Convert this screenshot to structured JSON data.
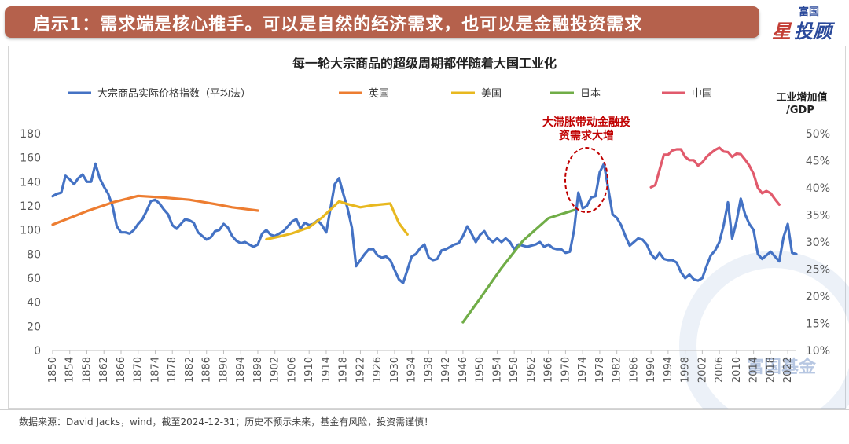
{
  "header": {
    "title": "启示1：需求端是核心推手。可以是自然的经济需求，也可以是金融投资需求",
    "logo_top": "富国",
    "logo_mark": "星",
    "logo_text": "投顾"
  },
  "footer": {
    "source": "数据来源：David Jacks，wind，截至2024-12-31；历史不预示未来，基金有风险，投资需谨慎！"
  },
  "watermark": "富国基金",
  "chart_data": {
    "type": "line",
    "title": "每一轮大宗商品的超级周期都伴随着大国工业化",
    "y2label": "工业增加值\n/GDP",
    "annotation": "大滞胀带动金融投\n资需求大增",
    "legend_position": "top",
    "ylim": [
      0,
      180
    ],
    "y2lim": [
      0.1,
      0.5
    ],
    "xlim": [
      1850,
      2024
    ],
    "y_ticks": [
      0,
      20,
      40,
      60,
      80,
      100,
      120,
      140,
      160,
      180
    ],
    "y2_ticks": [
      "10%",
      "15%",
      "20%",
      "25%",
      "30%",
      "35%",
      "40%",
      "45%",
      "50%"
    ],
    "x_ticks": [
      1850,
      1854,
      1858,
      1862,
      1866,
      1870,
      1874,
      1878,
      1882,
      1886,
      1890,
      1894,
      1898,
      1902,
      1906,
      1910,
      1914,
      1918,
      1922,
      1926,
      1930,
      1934,
      1938,
      1942,
      1946,
      1950,
      1954,
      1958,
      1962,
      1966,
      1970,
      1974,
      1978,
      1982,
      1986,
      1990,
      1994,
      1998,
      2002,
      2006,
      2010,
      2014,
      2018,
      2022
    ],
    "grid": false,
    "series": [
      {
        "name": "大宗商品实际价格指数（平均法）",
        "axis": "left",
        "color": "#4472c4",
        "points": [
          [
            1850,
            128
          ],
          [
            1851,
            130
          ],
          [
            1852,
            131
          ],
          [
            1853,
            145
          ],
          [
            1854,
            142
          ],
          [
            1855,
            138
          ],
          [
            1856,
            143
          ],
          [
            1857,
            146
          ],
          [
            1858,
            140
          ],
          [
            1859,
            140
          ],
          [
            1860,
            155
          ],
          [
            1861,
            143
          ],
          [
            1862,
            136
          ],
          [
            1863,
            130
          ],
          [
            1864,
            120
          ],
          [
            1865,
            103
          ],
          [
            1866,
            98
          ],
          [
            1867,
            98
          ],
          [
            1868,
            97
          ],
          [
            1869,
            100
          ],
          [
            1870,
            105
          ],
          [
            1871,
            109
          ],
          [
            1872,
            116
          ],
          [
            1873,
            124
          ],
          [
            1874,
            125
          ],
          [
            1875,
            122
          ],
          [
            1876,
            117
          ],
          [
            1877,
            113
          ],
          [
            1878,
            104
          ],
          [
            1879,
            101
          ],
          [
            1880,
            105
          ],
          [
            1881,
            109
          ],
          [
            1882,
            108
          ],
          [
            1883,
            106
          ],
          [
            1884,
            98
          ],
          [
            1885,
            95
          ],
          [
            1886,
            92
          ],
          [
            1887,
            94
          ],
          [
            1888,
            99
          ],
          [
            1889,
            100
          ],
          [
            1890,
            105
          ],
          [
            1891,
            102
          ],
          [
            1892,
            95
          ],
          [
            1893,
            91
          ],
          [
            1894,
            89
          ],
          [
            1895,
            90
          ],
          [
            1896,
            88
          ],
          [
            1897,
            86
          ],
          [
            1898,
            88
          ],
          [
            1899,
            97
          ],
          [
            1900,
            100
          ],
          [
            1901,
            96
          ],
          [
            1902,
            95
          ],
          [
            1903,
            97
          ],
          [
            1904,
            99
          ],
          [
            1905,
            103
          ],
          [
            1906,
            107
          ],
          [
            1907,
            109
          ],
          [
            1908,
            101
          ],
          [
            1909,
            106
          ],
          [
            1910,
            104
          ],
          [
            1911,
            105
          ],
          [
            1912,
            108
          ],
          [
            1913,
            104
          ],
          [
            1914,
            98
          ],
          [
            1915,
            118
          ],
          [
            1916,
            138
          ],
          [
            1917,
            143
          ],
          [
            1918,
            130
          ],
          [
            1919,
            118
          ],
          [
            1920,
            102
          ],
          [
            1921,
            70
          ],
          [
            1922,
            75
          ],
          [
            1923,
            80
          ],
          [
            1924,
            84
          ],
          [
            1925,
            84
          ],
          [
            1926,
            79
          ],
          [
            1927,
            77
          ],
          [
            1928,
            78
          ],
          [
            1929,
            75
          ],
          [
            1930,
            67
          ],
          [
            1931,
            59
          ],
          [
            1932,
            56
          ],
          [
            1933,
            67
          ],
          [
            1934,
            78
          ],
          [
            1935,
            80
          ],
          [
            1936,
            85
          ],
          [
            1937,
            88
          ],
          [
            1938,
            77
          ],
          [
            1939,
            75
          ],
          [
            1940,
            76
          ],
          [
            1941,
            83
          ],
          [
            1942,
            84
          ],
          [
            1943,
            86
          ],
          [
            1944,
            88
          ],
          [
            1945,
            89
          ],
          [
            1946,
            95
          ],
          [
            1947,
            103
          ],
          [
            1948,
            97
          ],
          [
            1949,
            90
          ],
          [
            1950,
            96
          ],
          [
            1951,
            99
          ],
          [
            1952,
            93
          ],
          [
            1953,
            90
          ],
          [
            1954,
            93
          ],
          [
            1955,
            90
          ],
          [
            1956,
            93
          ],
          [
            1957,
            90
          ],
          [
            1958,
            84
          ],
          [
            1959,
            88
          ],
          [
            1960,
            87
          ],
          [
            1961,
            86
          ],
          [
            1962,
            87
          ],
          [
            1963,
            88
          ],
          [
            1964,
            90
          ],
          [
            1965,
            86
          ],
          [
            1966,
            88
          ],
          [
            1967,
            85
          ],
          [
            1968,
            84
          ],
          [
            1969,
            84
          ],
          [
            1970,
            81
          ],
          [
            1971,
            82
          ],
          [
            1972,
            100
          ],
          [
            1973,
            131
          ],
          [
            1974,
            118
          ],
          [
            1975,
            120
          ],
          [
            1976,
            127
          ],
          [
            1977,
            128
          ],
          [
            1978,
            148
          ],
          [
            1979,
            155
          ],
          [
            1980,
            134
          ],
          [
            1981,
            113
          ],
          [
            1982,
            110
          ],
          [
            1983,
            104
          ],
          [
            1984,
            95
          ],
          [
            1985,
            87
          ],
          [
            1986,
            90
          ],
          [
            1987,
            93
          ],
          [
            1988,
            92
          ],
          [
            1989,
            88
          ],
          [
            1990,
            80
          ],
          [
            1991,
            76
          ],
          [
            1992,
            81
          ],
          [
            1993,
            76
          ],
          [
            1994,
            75
          ],
          [
            1995,
            75
          ],
          [
            1996,
            73
          ],
          [
            1997,
            65
          ],
          [
            1998,
            60
          ],
          [
            1999,
            63
          ],
          [
            2000,
            59
          ],
          [
            2001,
            58
          ],
          [
            2002,
            60
          ],
          [
            2003,
            70
          ],
          [
            2004,
            79
          ],
          [
            2005,
            83
          ],
          [
            2006,
            90
          ],
          [
            2007,
            104
          ],
          [
            2008,
            123
          ],
          [
            2009,
            93
          ],
          [
            2010,
            107
          ],
          [
            2011,
            126
          ],
          [
            2012,
            113
          ],
          [
            2013,
            105
          ],
          [
            2014,
            100
          ],
          [
            2015,
            80
          ],
          [
            2016,
            76
          ],
          [
            2017,
            79
          ],
          [
            2018,
            82
          ],
          [
            2019,
            78
          ],
          [
            2020,
            74
          ],
          [
            2021,
            94
          ],
          [
            2022,
            105
          ],
          [
            2023,
            81
          ],
          [
            2024,
            80
          ]
        ]
      },
      {
        "name": "英国",
        "axis": "right",
        "color": "#ed7d31",
        "points": [
          [
            1850,
            0.332
          ],
          [
            1858,
            0.357
          ],
          [
            1864,
            0.373
          ],
          [
            1870,
            0.385
          ],
          [
            1876,
            0.382
          ],
          [
            1882,
            0.378
          ],
          [
            1888,
            0.37
          ],
          [
            1892,
            0.364
          ],
          [
            1898,
            0.358
          ]
        ]
      },
      {
        "name": "美国",
        "axis": "right",
        "color": "#e8b81f",
        "points": [
          [
            1900,
            0.305
          ],
          [
            1903,
            0.31
          ],
          [
            1906,
            0.316
          ],
          [
            1910,
            0.327
          ],
          [
            1913,
            0.345
          ],
          [
            1917,
            0.375
          ],
          [
            1919,
            0.37
          ],
          [
            1922,
            0.364
          ],
          [
            1925,
            0.368
          ],
          [
            1929,
            0.371
          ],
          [
            1931,
            0.335
          ],
          [
            1933,
            0.314
          ]
        ]
      },
      {
        "name": "日本",
        "axis": "right",
        "color": "#70ad47",
        "points": [
          [
            1946,
            0.152
          ],
          [
            1950,
            0.196
          ],
          [
            1955,
            0.252
          ],
          [
            1960,
            0.302
          ],
          [
            1966,
            0.344
          ],
          [
            1972,
            0.359
          ]
        ]
      },
      {
        "name": "中国",
        "axis": "right",
        "color": "#e15a6c",
        "points": [
          [
            1990,
            0.401
          ],
          [
            1991,
            0.405
          ],
          [
            1992,
            0.433
          ],
          [
            1993,
            0.461
          ],
          [
            1994,
            0.461
          ],
          [
            1995,
            0.469
          ],
          [
            1996,
            0.471
          ],
          [
            1997,
            0.471
          ],
          [
            1998,
            0.457
          ],
          [
            1999,
            0.451
          ],
          [
            2000,
            0.451
          ],
          [
            2001,
            0.441
          ],
          [
            2002,
            0.447
          ],
          [
            2003,
            0.457
          ],
          [
            2004,
            0.464
          ],
          [
            2005,
            0.47
          ],
          [
            2006,
            0.474
          ],
          [
            2007,
            0.467
          ],
          [
            2008,
            0.466
          ],
          [
            2009,
            0.457
          ],
          [
            2010,
            0.463
          ],
          [
            2011,
            0.462
          ],
          [
            2012,
            0.452
          ],
          [
            2013,
            0.441
          ],
          [
            2014,
            0.426
          ],
          [
            2015,
            0.4
          ],
          [
            2016,
            0.39
          ],
          [
            2017,
            0.394
          ],
          [
            2018,
            0.39
          ],
          [
            2019,
            0.379
          ],
          [
            2020,
            0.369
          ]
        ]
      }
    ]
  }
}
